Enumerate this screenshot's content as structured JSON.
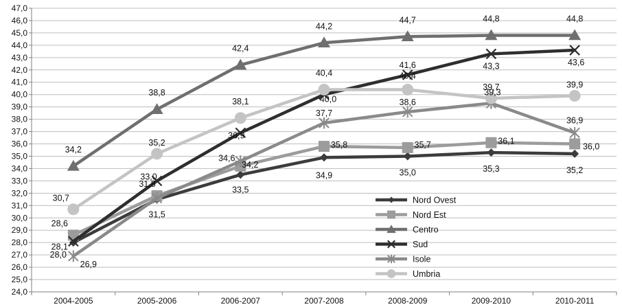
{
  "chart_data": {
    "type": "line",
    "title": "",
    "xlabel": "",
    "ylabel": "",
    "categories": [
      "2004-2005",
      "2005-2006",
      "2006-2007",
      "2007-2008",
      "2008-2009",
      "2009-2010",
      "2010-2011"
    ],
    "ylim": [
      24.0,
      47.0
    ],
    "ytick_step": 1.0,
    "ytick_labels": [
      "24,0",
      "25,0",
      "26,0",
      "27,0",
      "28,0",
      "29,0",
      "30,0",
      "31,0",
      "32,0",
      "33,0",
      "34,0",
      "35,0",
      "36,0",
      "37,0",
      "38,0",
      "39,0",
      "40,0",
      "41,0",
      "42,0",
      "43,0",
      "44,0",
      "45,0",
      "46,0",
      "47,0"
    ],
    "grid": "horizontal",
    "legend_position": "bottom-right inside plot",
    "series": [
      {
        "name": "Nord Ovest",
        "marker": "diamond",
        "color": "#3c3c3c",
        "values": [
          28.0,
          31.5,
          33.5,
          34.9,
          35.0,
          35.3,
          35.2
        ],
        "labels": [
          "28,0",
          "31,5",
          "33,5",
          "34,9",
          "35,0",
          "35,3",
          "35,2"
        ]
      },
      {
        "name": "Nord Est",
        "marker": "square",
        "color": "#9c9c9c",
        "values": [
          28.6,
          31.8,
          34.2,
          35.8,
          35.7,
          36.1,
          36.0
        ],
        "labels": [
          "28,6",
          "31,8",
          "34,2",
          "35,8",
          "35,7",
          "36,1",
          "36,0"
        ]
      },
      {
        "name": "Centro",
        "marker": "triangle",
        "color": "#6f6f6f",
        "values": [
          34.2,
          38.8,
          42.4,
          44.2,
          44.7,
          44.8,
          44.8
        ],
        "labels": [
          "34,2",
          "38,8",
          "42,4",
          "44,2",
          "44,7",
          "44,8",
          "44,8"
        ]
      },
      {
        "name": "Sud",
        "marker": "x",
        "color": "#2e2e2e",
        "values": [
          28.1,
          33.0,
          36.9,
          40.0,
          41.6,
          43.3,
          43.6
        ],
        "labels": [
          "28,1",
          "33,0",
          "36,9",
          "40,0",
          "41,6",
          "43,3",
          "43,6"
        ]
      },
      {
        "name": "Isole",
        "marker": "star",
        "color": "#8a8a8a",
        "values": [
          26.9,
          31.6,
          34.6,
          37.7,
          38.6,
          39.3,
          36.9
        ],
        "labels": [
          "26,9",
          "",
          "34,6",
          "37,7",
          "38,6",
          "39,3",
          "36,9"
        ]
      },
      {
        "name": "Umbria",
        "marker": "circle",
        "color": "#c4c4c4",
        "values": [
          30.7,
          35.2,
          38.1,
          40.4,
          40.4,
          39.7,
          39.9
        ],
        "labels": [
          "30,7",
          "35,2",
          "38,1",
          "40,4",
          "40,4",
          "39,7",
          "39,9"
        ]
      }
    ]
  }
}
